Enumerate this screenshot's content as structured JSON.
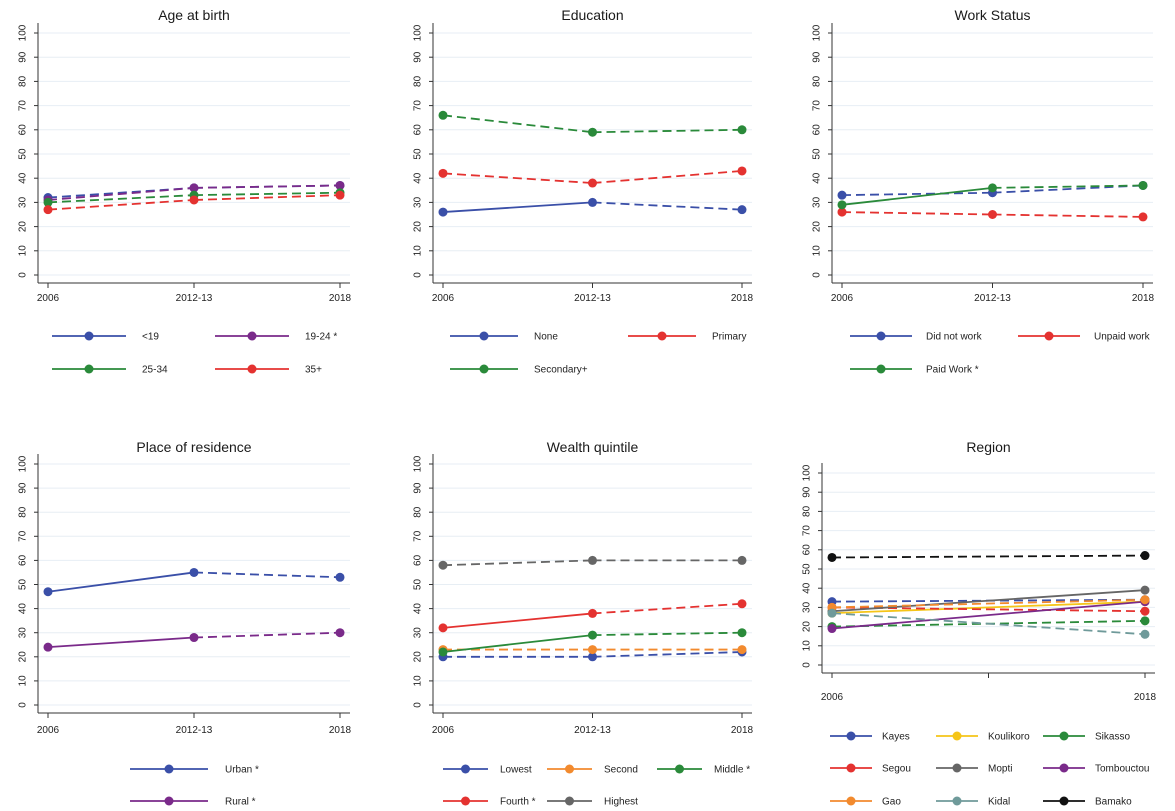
{
  "chart_data": [
    {
      "type": "line",
      "title": "Age at birth",
      "x": [
        "2006",
        "2012-13",
        "2018"
      ],
      "ylim": [
        0,
        100
      ],
      "yticks": [
        0,
        10,
        20,
        30,
        40,
        50,
        60,
        70,
        80,
        90,
        100
      ],
      "grid": true,
      "legend_position": "bottom",
      "series": [
        {
          "name": "<19",
          "color": "#3a4fa8",
          "values": [
            32,
            36,
            37
          ],
          "segments": [
            "dashed",
            "dashed"
          ]
        },
        {
          "name": "19-24 *",
          "color": "#7a2a8a",
          "values": [
            31,
            36,
            37
          ],
          "segments": [
            "dashed",
            "dashed"
          ]
        },
        {
          "name": "25-34",
          "color": "#2a8a3a",
          "values": [
            30,
            33,
            34
          ],
          "segments": [
            "dashed",
            "dashed"
          ]
        },
        {
          "name": "35+",
          "color": "#e43230",
          "values": [
            27,
            31,
            33
          ],
          "segments": [
            "dashed",
            "dashed"
          ]
        }
      ]
    },
    {
      "type": "line",
      "title": "Education",
      "x": [
        "2006",
        "2012-13",
        "2018"
      ],
      "ylim": [
        0,
        100
      ],
      "yticks": [
        0,
        10,
        20,
        30,
        40,
        50,
        60,
        70,
        80,
        90,
        100
      ],
      "grid": true,
      "legend_position": "bottom",
      "series": [
        {
          "name": "None",
          "color": "#3a4fa8",
          "values": [
            26,
            30,
            27
          ],
          "segments": [
            "solid",
            "dashed"
          ]
        },
        {
          "name": "Primary",
          "color": "#e43230",
          "values": [
            42,
            38,
            43
          ],
          "segments": [
            "dashed",
            "dashed"
          ]
        },
        {
          "name": "Secondary+",
          "color": "#2a8a3a",
          "values": [
            66,
            59,
            60
          ],
          "segments": [
            "dashed",
            "dashed"
          ]
        }
      ]
    },
    {
      "type": "line",
      "title": "Work Status",
      "x": [
        "2006",
        "2012-13",
        "2018"
      ],
      "ylim": [
        0,
        100
      ],
      "yticks": [
        0,
        10,
        20,
        30,
        40,
        50,
        60,
        70,
        80,
        90,
        100
      ],
      "grid": true,
      "legend_position": "bottom",
      "series": [
        {
          "name": "Did not work",
          "color": "#3a4fa8",
          "values": [
            33,
            34,
            37
          ],
          "segments": [
            "dashed",
            "dashed"
          ]
        },
        {
          "name": "Unpaid work",
          "color": "#e43230",
          "values": [
            26,
            25,
            24
          ],
          "segments": [
            "dashed",
            "dashed"
          ]
        },
        {
          "name": "Paid Work *",
          "color": "#2a8a3a",
          "values": [
            29,
            36,
            37
          ],
          "segments": [
            "solid",
            "dashed"
          ]
        }
      ]
    },
    {
      "type": "line",
      "title": "Place of residence",
      "x": [
        "2006",
        "2012-13",
        "2018"
      ],
      "ylim": [
        0,
        100
      ],
      "yticks": [
        0,
        10,
        20,
        30,
        40,
        50,
        60,
        70,
        80,
        90,
        100
      ],
      "grid": true,
      "legend_position": "bottom",
      "series": [
        {
          "name": "Urban *",
          "color": "#3a4fa8",
          "values": [
            47,
            55,
            53
          ],
          "segments": [
            "solid",
            "dashed"
          ]
        },
        {
          "name": "Rural *",
          "color": "#7a2a8a",
          "values": [
            24,
            28,
            30
          ],
          "segments": [
            "solid",
            "dashed"
          ]
        }
      ]
    },
    {
      "type": "line",
      "title": "Wealth quintile",
      "x": [
        "2006",
        "2012-13",
        "2018"
      ],
      "ylim": [
        0,
        100
      ],
      "yticks": [
        0,
        10,
        20,
        30,
        40,
        50,
        60,
        70,
        80,
        90,
        100
      ],
      "grid": true,
      "legend_position": "bottom",
      "series": [
        {
          "name": "Lowest",
          "color": "#3a4fa8",
          "values": [
            20,
            20,
            22
          ],
          "segments": [
            "dashed",
            "dashed"
          ]
        },
        {
          "name": "Second",
          "color": "#f28a2e",
          "values": [
            23,
            23,
            23
          ],
          "segments": [
            "dashed",
            "dashed"
          ]
        },
        {
          "name": "Middle *",
          "color": "#2a8a3a",
          "values": [
            22,
            29,
            30
          ],
          "segments": [
            "solid",
            "dashed"
          ]
        },
        {
          "name": "Fourth *",
          "color": "#e43230",
          "values": [
            32,
            38,
            42
          ],
          "segments": [
            "solid",
            "dashed"
          ]
        },
        {
          "name": "Highest",
          "color": "#666666",
          "values": [
            58,
            60,
            60
          ],
          "segments": [
            "dashed",
            "dashed"
          ]
        }
      ]
    },
    {
      "type": "line",
      "title": "Region",
      "x": [
        "2006",
        "2018"
      ],
      "x_has_middle_tick": true,
      "ylim": [
        0,
        100
      ],
      "yticks": [
        0,
        10,
        20,
        30,
        40,
        50,
        60,
        70,
        80,
        90,
        100
      ],
      "grid": true,
      "legend_position": "bottom",
      "series": [
        {
          "name": "Kayes",
          "color": "#3a4fa8",
          "values": [
            33,
            34
          ],
          "segments": [
            "dashed"
          ]
        },
        {
          "name": "Koulikoro",
          "color": "#f5c518",
          "values": [
            27,
            33
          ],
          "segments": [
            "solid"
          ]
        },
        {
          "name": "Sikasso",
          "color": "#2a8a3a",
          "values": [
            20,
            23
          ],
          "segments": [
            "dashed"
          ]
        },
        {
          "name": "Segou",
          "color": "#e43230",
          "values": [
            30,
            28
          ],
          "segments": [
            "dashed"
          ]
        },
        {
          "name": "Mopti",
          "color": "#666666",
          "values": [
            28,
            39
          ],
          "segments": [
            "solid"
          ]
        },
        {
          "name": "Tombouctou",
          "color": "#7a2a8a",
          "values": [
            19,
            33
          ],
          "segments": [
            "solid"
          ]
        },
        {
          "name": "Gao",
          "color": "#f28a2e",
          "values": [
            30,
            34
          ],
          "segments": [
            "dashed"
          ]
        },
        {
          "name": "Kidal",
          "color": "#6f9a9a",
          "values": [
            27,
            16
          ],
          "segments": [
            "dashed"
          ]
        },
        {
          "name": "Bamako",
          "color": "#111111",
          "values": [
            56,
            57
          ],
          "segments": [
            "dashed"
          ]
        }
      ]
    }
  ]
}
